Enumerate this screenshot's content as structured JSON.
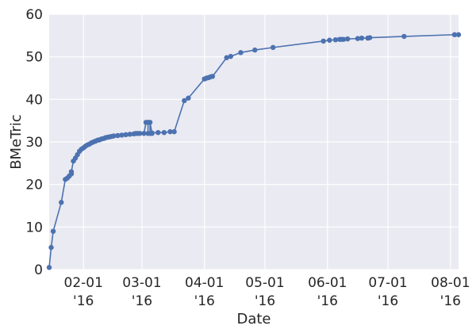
{
  "chart_data": {
    "type": "line",
    "title": "",
    "xlabel": "Date",
    "ylabel": "BMeTric",
    "ylim": [
      0,
      60
    ],
    "xlim": [
      "2016-01-15",
      "2016-08-05"
    ],
    "grid": true,
    "legend": "none",
    "colors": {
      "background": "#EAEAF2",
      "grid": "#FFFFFF",
      "series": "#4C72B0"
    },
    "y_ticks": [
      "0",
      "10",
      "20",
      "30",
      "40",
      "50",
      "60"
    ],
    "x_ticks": [
      {
        "date": "2016-02-01",
        "line1": "02-01",
        "line2": "'16"
      },
      {
        "date": "2016-03-01",
        "line1": "03-01",
        "line2": "'16"
      },
      {
        "date": "2016-04-01",
        "line1": "04-01",
        "line2": "'16"
      },
      {
        "date": "2016-05-01",
        "line1": "05-01",
        "line2": "'16"
      },
      {
        "date": "2016-06-01",
        "line1": "06-01",
        "line2": "'16"
      },
      {
        "date": "2016-07-01",
        "line1": "07-01",
        "line2": "'16"
      },
      {
        "date": "2016-08-01",
        "line1": "08-01",
        "line2": "'16"
      }
    ],
    "series": [
      {
        "x": [
          "2016-01-15",
          "2016-01-16",
          "2016-01-17",
          "2016-01-21",
          "2016-01-23",
          "2016-01-24",
          "2016-01-25",
          "2016-01-26",
          "2016-01-26",
          "2016-01-27",
          "2016-01-28",
          "2016-01-29",
          "2016-01-30",
          "2016-01-31",
          "2016-02-01",
          "2016-02-02",
          "2016-02-03",
          "2016-02-04",
          "2016-02-05",
          "2016-02-06",
          "2016-02-07",
          "2016-02-08",
          "2016-02-09",
          "2016-02-10",
          "2016-02-11",
          "2016-02-12",
          "2016-02-13",
          "2016-02-14",
          "2016-02-15",
          "2016-02-16",
          "2016-02-18",
          "2016-02-20",
          "2016-02-22",
          "2016-02-24",
          "2016-02-26",
          "2016-02-27",
          "2016-02-28",
          "2016-02-29",
          "2016-03-02",
          "2016-03-03",
          "2016-03-04",
          "2016-03-04",
          "2016-03-05",
          "2016-03-05",
          "2016-03-06",
          "2016-03-06",
          "2016-03-09",
          "2016-03-12",
          "2016-03-15",
          "2016-03-17",
          "2016-03-22",
          "2016-03-24",
          "2016-04-01",
          "2016-04-02",
          "2016-04-03",
          "2016-04-04",
          "2016-04-05",
          "2016-04-12",
          "2016-04-14",
          "2016-04-19",
          "2016-04-26",
          "2016-05-05",
          "2016-05-30",
          "2016-06-02",
          "2016-06-05",
          "2016-06-07",
          "2016-06-08",
          "2016-06-09",
          "2016-06-11",
          "2016-06-16",
          "2016-06-18",
          "2016-06-21",
          "2016-06-22",
          "2016-07-09",
          "2016-08-03",
          "2016-08-05"
        ],
        "y": [
          0.5,
          5.2,
          9.0,
          15.8,
          21.2,
          21.5,
          22.0,
          22.5,
          23.0,
          25.5,
          26.2,
          27.0,
          27.8,
          28.3,
          28.6,
          29.0,
          29.3,
          29.5,
          29.8,
          30.0,
          30.2,
          30.4,
          30.5,
          30.7,
          30.8,
          31.0,
          31.1,
          31.2,
          31.3,
          31.4,
          31.5,
          31.6,
          31.7,
          31.8,
          31.9,
          32.0,
          32.0,
          32.0,
          32.0,
          34.6,
          34.6,
          32.0,
          32.0,
          34.6,
          32.0,
          32.1,
          32.2,
          32.2,
          32.4,
          32.4,
          39.7,
          40.3,
          44.8,
          45.0,
          45.1,
          45.3,
          45.4,
          49.8,
          50.1,
          51.0,
          51.6,
          52.2,
          53.7,
          53.9,
          54.0,
          54.1,
          54.1,
          54.1,
          54.2,
          54.3,
          54.4,
          54.4,
          54.5,
          54.8,
          55.2,
          55.2
        ]
      }
    ]
  }
}
